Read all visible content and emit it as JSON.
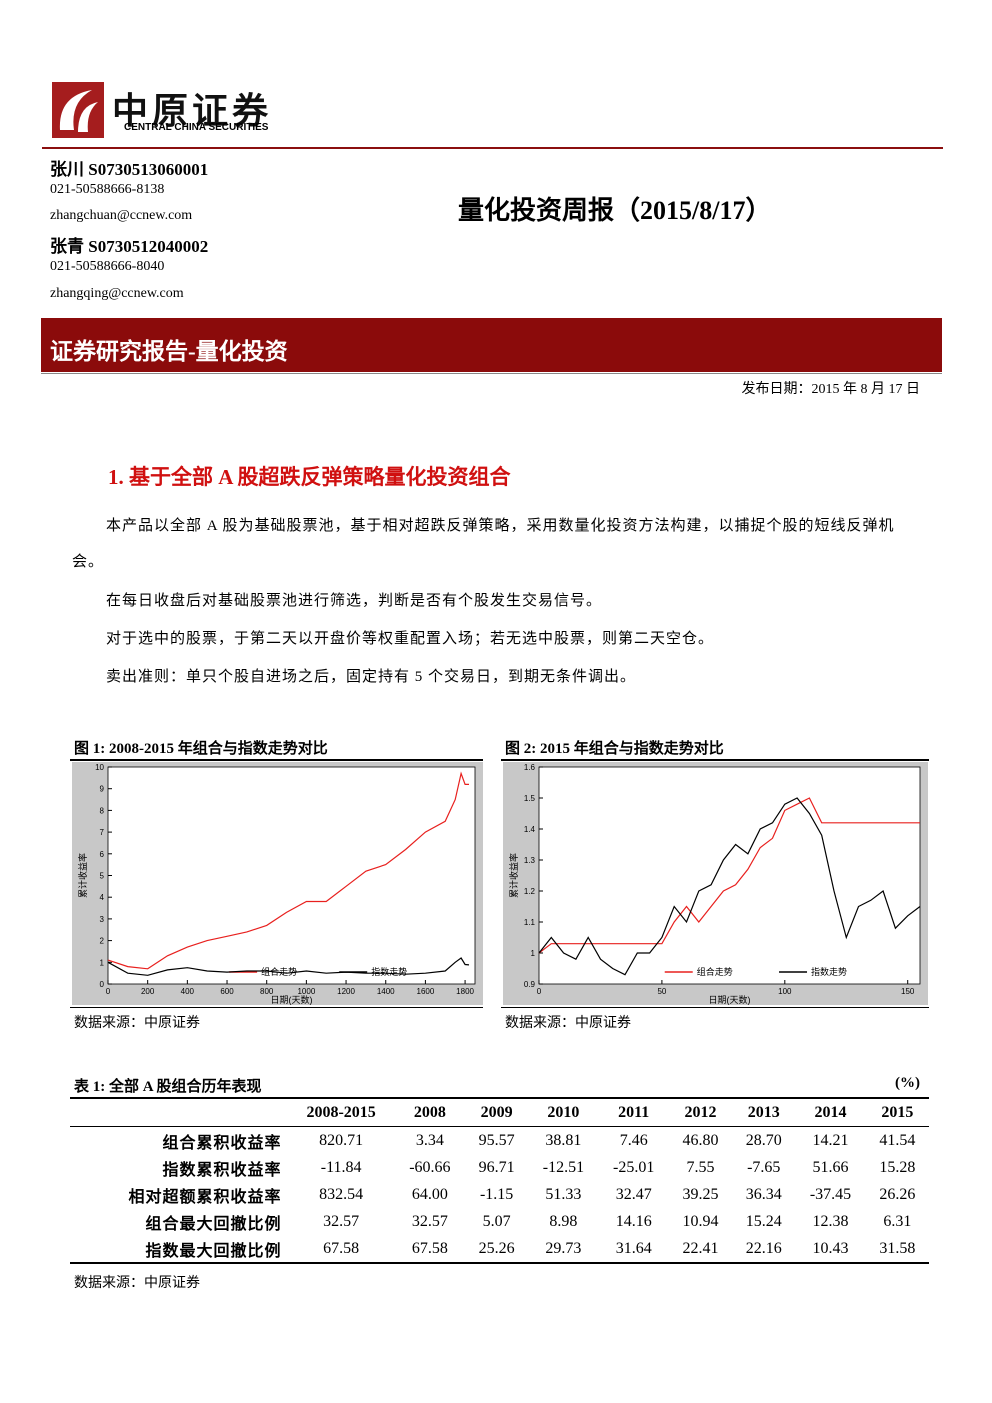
{
  "header": {
    "logo_cn": "中原证券",
    "logo_en": "CENTRAL CHINA SECURITIES"
  },
  "authors": [
    {
      "name": "张川 S0730513060001",
      "phone": "021-50588666-8138",
      "email": "zhangchuan@ccnew.com"
    },
    {
      "name": "张青 S0730512040002",
      "phone": "021-50588666-8040",
      "email": "zhangqing@ccnew.com"
    }
  ],
  "report_title": "量化投资周报（2015/8/17）",
  "banner": "证券研究报告-量化投资",
  "publish_date": "发布日期：2015 年 8 月 17 日",
  "section_title": "1. 基于全部 A 股超跌反弹策略量化投资组合",
  "paragraphs": [
    "本产品以全部 A 股为基础股票池，基于相对超跌反弹策略，采用数量化投资方法构建，以捕捉个股的短线反弹机会。",
    "在每日收盘后对基础股票池进行筛选，判断是否有个股发生交易信号。",
    "对于选中的股票，于第二天以开盘价等权重配置入场；若无选中股票，则第二天空仓。",
    "卖出准则：单只个股自进场之后，固定持有 5 个交易日，到期无条件调出。"
  ],
  "chart_data": [
    {
      "type": "line",
      "title": "图 1:  2008-2015 年组合与指数走势对比",
      "source": "数据来源：中原证券",
      "x_label": "日期(天数)",
      "y_label": "累计收益率",
      "x": [
        0,
        100,
        200,
        300,
        400,
        500,
        600,
        700,
        800,
        900,
        1000,
        1100,
        1200,
        1300,
        1400,
        1500,
        1600,
        1700,
        1750,
        1780,
        1800,
        1820
      ],
      "xlim": [
        0,
        1850
      ],
      "xticks": [
        0,
        200,
        400,
        600,
        800,
        1000,
        1200,
        1400,
        1600,
        1800
      ],
      "ylim": [
        0,
        10
      ],
      "yticks": [
        0,
        1,
        2,
        3,
        4,
        5,
        6,
        7,
        8,
        9,
        10
      ],
      "series": [
        {
          "name": "组合走势",
          "color": "#e8201e",
          "values": [
            1.1,
            0.8,
            0.7,
            1.3,
            1.7,
            2.0,
            2.2,
            2.4,
            2.7,
            3.3,
            3.8,
            3.8,
            4.5,
            5.2,
            5.5,
            6.2,
            7.0,
            7.5,
            8.5,
            9.7,
            9.2,
            9.2
          ]
        },
        {
          "name": "指数走势",
          "color": "#000000",
          "values": [
            1.0,
            0.5,
            0.4,
            0.65,
            0.75,
            0.6,
            0.55,
            0.6,
            0.6,
            0.5,
            0.6,
            0.5,
            0.55,
            0.5,
            0.5,
            0.45,
            0.5,
            0.6,
            1.0,
            1.2,
            0.9,
            0.88
          ]
        }
      ]
    },
    {
      "type": "line",
      "title": "图 2:  2015 年组合与指数走势对比",
      "source": "数据来源：中原证券",
      "x_label": "日期(天数)",
      "y_label": "累计收益率",
      "x": [
        0,
        5,
        10,
        15,
        20,
        25,
        30,
        35,
        40,
        45,
        50,
        55,
        60,
        65,
        70,
        75,
        80,
        85,
        90,
        95,
        100,
        105,
        110,
        115,
        120,
        125,
        130,
        135,
        140,
        145,
        150,
        155
      ],
      "xlim": [
        0,
        155
      ],
      "xticks": [
        0,
        50,
        100,
        150
      ],
      "ylim": [
        0.9,
        1.6
      ],
      "yticks": [
        0.9,
        1,
        1.1,
        1.2,
        1.3,
        1.4,
        1.5,
        1.6
      ],
      "series": [
        {
          "name": "组合走势",
          "color": "#e8201e",
          "values": [
            1.0,
            1.03,
            1.03,
            1.03,
            1.03,
            1.03,
            1.03,
            1.03,
            1.03,
            1.03,
            1.03,
            1.1,
            1.15,
            1.1,
            1.15,
            1.2,
            1.22,
            1.27,
            1.34,
            1.37,
            1.46,
            1.48,
            1.5,
            1.42,
            1.42,
            1.42,
            1.42,
            1.42,
            1.42,
            1.42,
            1.42,
            1.42
          ]
        },
        {
          "name": "指数走势",
          "color": "#000000",
          "values": [
            1.0,
            1.05,
            1.0,
            0.98,
            1.05,
            0.98,
            0.95,
            0.93,
            1.0,
            1.0,
            1.05,
            1.15,
            1.1,
            1.2,
            1.22,
            1.3,
            1.35,
            1.32,
            1.4,
            1.42,
            1.48,
            1.5,
            1.45,
            1.38,
            1.2,
            1.05,
            1.15,
            1.17,
            1.2,
            1.08,
            1.12,
            1.15
          ]
        }
      ]
    }
  ],
  "table": {
    "caption": "表 1:  全部 A 股组合历年表现",
    "unit": "(%)",
    "columns": [
      "",
      "2008-2015",
      "2008",
      "2009",
      "2010",
      "2011",
      "2012",
      "2013",
      "2014",
      "2015"
    ],
    "rows": [
      [
        "组合累积收益率",
        "820.71",
        "3.34",
        "95.57",
        "38.81",
        "7.46",
        "46.80",
        "28.70",
        "14.21",
        "41.54"
      ],
      [
        "指数累积收益率",
        "-11.84",
        "-60.66",
        "96.71",
        "-12.51",
        "-25.01",
        "7.55",
        "-7.65",
        "51.66",
        "15.28"
      ],
      [
        "相对超额累积收益率",
        "832.54",
        "64.00",
        "-1.15",
        "51.33",
        "32.47",
        "39.25",
        "36.34",
        "-37.45",
        "26.26"
      ],
      [
        "组合最大回撤比例",
        "32.57",
        "32.57",
        "5.07",
        "8.98",
        "14.16",
        "10.94",
        "15.24",
        "12.38",
        "6.31"
      ],
      [
        "指数最大回撤比例",
        "67.58",
        "67.58",
        "25.26",
        "29.73",
        "31.64",
        "22.41",
        "22.16",
        "10.43",
        "31.58"
      ]
    ],
    "source": "数据来源：中原证券"
  }
}
